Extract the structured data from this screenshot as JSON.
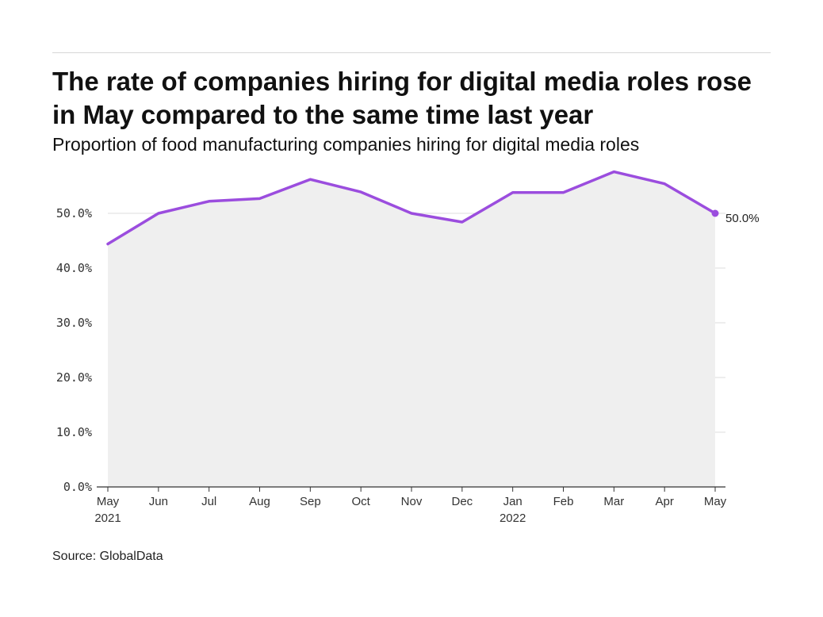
{
  "header": {
    "title": "The rate of companies hiring for digital media roles rose in May compared to the same time last year",
    "subtitle": "Proportion of food manufacturing companies hiring for digital media roles"
  },
  "footer": {
    "source": "Source: GlobalData"
  },
  "colors": {
    "line": "#9b4dde",
    "area": "#efefef",
    "grid": "#dedede",
    "axis": "#333333"
  },
  "chart_data": {
    "type": "area",
    "categories": [
      "May 2021",
      "Jun",
      "Jul",
      "Aug",
      "Sep",
      "Oct",
      "Nov",
      "Dec",
      "Jan 2022",
      "Feb",
      "Mar",
      "Apr",
      "May"
    ],
    "x_tick_labels": [
      [
        "May",
        "2021"
      ],
      [
        "Jun"
      ],
      [
        "Jul"
      ],
      [
        "Aug"
      ],
      [
        "Sep"
      ],
      [
        "Oct"
      ],
      [
        "Nov"
      ],
      [
        "Dec"
      ],
      [
        "Jan",
        "2022"
      ],
      [
        "Feb"
      ],
      [
        "Mar"
      ],
      [
        "Apr"
      ],
      [
        "May"
      ]
    ],
    "values": [
      44.4,
      50.0,
      52.2,
      52.7,
      56.2,
      53.9,
      50.0,
      48.4,
      53.8,
      53.8,
      57.6,
      55.4,
      50.0
    ],
    "y_ticks": [
      0,
      10,
      20,
      30,
      40,
      50
    ],
    "y_tick_labels": [
      "0.0%",
      "10.0%",
      "20.0%",
      "30.0%",
      "40.0%",
      "50.0%"
    ],
    "ylim": [
      0,
      60
    ],
    "end_label": "50.0%",
    "grid": true,
    "xlabel": "",
    "ylabel": ""
  }
}
